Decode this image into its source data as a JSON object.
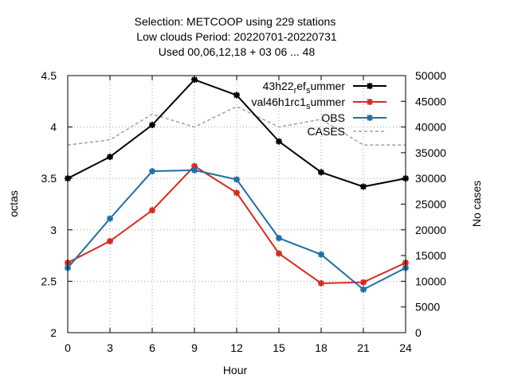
{
  "chart_data": {
    "type": "line",
    "title_lines": [
      "Selection: METCOOP using   229 stations",
      "Low clouds   Period: 20220701-20220731",
      "Used  00,06,12,18  + 03 06 ... 48"
    ],
    "xlabel": "Hour",
    "ylabel": "octas",
    "y2label": "No cases",
    "x": [
      0,
      3,
      6,
      9,
      12,
      15,
      18,
      21,
      24
    ],
    "xlim": [
      0,
      24
    ],
    "ylim": [
      2,
      4.5
    ],
    "y2lim": [
      0,
      50000
    ],
    "x_ticks": [
      "0",
      "3",
      "6",
      "9",
      "12",
      "15",
      "18",
      "21",
      "24"
    ],
    "y_ticks": [
      "2",
      "2.5",
      "3",
      "3.5",
      "4",
      "4.5"
    ],
    "y2_ticks": [
      "0",
      "5000",
      "10000",
      "15000",
      "20000",
      "25000",
      "30000",
      "35000",
      "40000",
      "45000",
      "50000"
    ],
    "grid": true,
    "legend_position": "top-right",
    "series": [
      {
        "name": "43h22_ref_summer",
        "legend_parts": {
          "a": "43h22",
          "sub1": "r",
          "b": "ef",
          "sub2": "s",
          "c": "ummer"
        },
        "color": "#000000",
        "axis": "left",
        "values": [
          3.5,
          3.71,
          4.02,
          4.46,
          4.31,
          3.86,
          3.56,
          3.42,
          3.5
        ]
      },
      {
        "name": "val46h1rc1_summer",
        "legend_parts": {
          "a": "val46h1rc1",
          "sub1": "s",
          "b": "ummer"
        },
        "color": "#d62a1c",
        "axis": "left",
        "values": [
          2.68,
          2.89,
          3.19,
          3.62,
          3.36,
          2.77,
          2.48,
          2.49,
          2.68
        ]
      },
      {
        "name": "OBS",
        "color": "#1f6fa6",
        "axis": "left",
        "values": [
          2.63,
          3.11,
          3.57,
          3.58,
          3.49,
          2.92,
          2.76,
          2.42,
          2.63
        ]
      },
      {
        "name": "CASES",
        "color": "#a0a0a0",
        "axis": "right",
        "values": [
          36500,
          37500,
          42500,
          40000,
          44000,
          40000,
          41500,
          36500,
          36500
        ]
      }
    ]
  }
}
